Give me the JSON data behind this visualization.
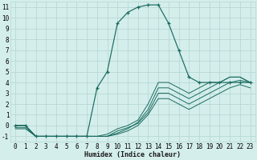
{
  "xlabel": "Humidex (Indice chaleur)",
  "xlim": [
    -0.5,
    23.5
  ],
  "ylim": [
    -1.5,
    11.5
  ],
  "xticks": [
    0,
    1,
    2,
    3,
    4,
    5,
    6,
    7,
    8,
    9,
    10,
    11,
    12,
    13,
    14,
    15,
    16,
    17,
    18,
    19,
    20,
    21,
    22,
    23
  ],
  "yticks": [
    -1,
    0,
    1,
    2,
    3,
    4,
    5,
    6,
    7,
    8,
    9,
    10,
    11
  ],
  "bg_color": "#d4eeec",
  "grid_color": "#b8d8d5",
  "line_color": "#1a6b5e",
  "lines": [
    {
      "x": [
        0,
        1,
        2,
        3,
        4,
        5,
        6,
        7,
        8,
        9,
        10,
        11,
        12,
        13,
        14,
        15,
        16,
        17,
        18,
        19,
        20,
        21,
        22,
        23
      ],
      "y": [
        0,
        0,
        -1,
        -1,
        -1,
        -1,
        -1,
        -1,
        -1,
        -1,
        -0.8,
        -0.5,
        0,
        1,
        2.5,
        2.5,
        2,
        1.5,
        2,
        2.5,
        3,
        3.5,
        3.8,
        3.5
      ],
      "marker": false
    },
    {
      "x": [
        0,
        1,
        2,
        3,
        4,
        5,
        6,
        7,
        8,
        9,
        10,
        11,
        12,
        13,
        14,
        15,
        16,
        17,
        18,
        19,
        20,
        21,
        22,
        23
      ],
      "y": [
        -0.2,
        -0.2,
        -1,
        -1,
        -1,
        -1,
        -1,
        -1,
        -1,
        -1,
        -0.5,
        -0.2,
        0.2,
        1.2,
        3,
        3,
        2.5,
        2,
        2.5,
        3,
        3.5,
        4,
        4.2,
        4
      ],
      "marker": false
    },
    {
      "x": [
        0,
        1,
        2,
        3,
        4,
        5,
        6,
        7,
        8,
        9,
        10,
        11,
        12,
        13,
        14,
        15,
        16,
        17,
        18,
        19,
        20,
        21,
        22,
        23
      ],
      "y": [
        0,
        0,
        -1,
        -1,
        -1,
        -1,
        -1,
        -1,
        -1,
        -1,
        -0.7,
        -0.3,
        0.3,
        1.5,
        3.5,
        3.5,
        3,
        2.5,
        3,
        3.5,
        4,
        4.5,
        4.5,
        4
      ],
      "marker": false
    },
    {
      "x": [
        0,
        1,
        2,
        3,
        4,
        5,
        6,
        7,
        8,
        9,
        10,
        11,
        12,
        13,
        14,
        15,
        16,
        17,
        18,
        19,
        20,
        21,
        22,
        23
      ],
      "y": [
        -0.3,
        -0.3,
        -1,
        -1,
        -1,
        -1,
        -1,
        -1,
        -1,
        -0.8,
        -0.3,
        0,
        0.5,
        2,
        4,
        4,
        3.5,
        3,
        3.5,
        4,
        4,
        4.5,
        4.5,
        4
      ],
      "marker": false
    },
    {
      "x": [
        0,
        1,
        2,
        3,
        4,
        5,
        6,
        7,
        8,
        9,
        10,
        11,
        12,
        13,
        14,
        15,
        16,
        17,
        18,
        19,
        20,
        21,
        22,
        23
      ],
      "y": [
        0,
        0,
        -1,
        -1,
        -1,
        -1,
        -1,
        -1,
        3.5,
        5,
        9.5,
        10.5,
        11,
        11.2,
        11.2,
        9.5,
        7,
        4.5,
        4,
        4,
        4,
        4,
        4,
        4
      ],
      "marker": true
    }
  ]
}
